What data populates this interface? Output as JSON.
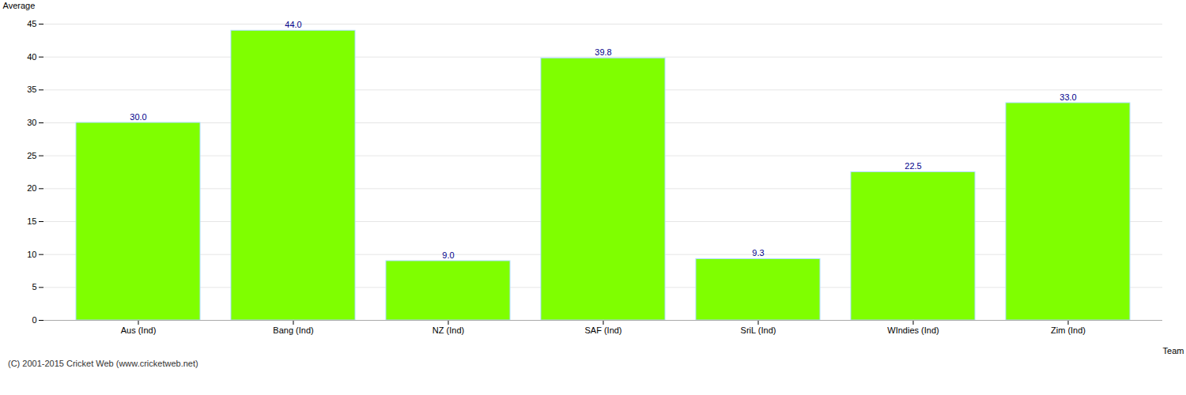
{
  "chart_data": {
    "type": "bar",
    "categories": [
      "Aus (Ind)",
      "Bang (Ind)",
      "NZ (Ind)",
      "SAF (Ind)",
      "SriL (Ind)",
      "WIndies (Ind)",
      "Zim (Ind)"
    ],
    "values": [
      30.0,
      44.0,
      9.0,
      39.8,
      9.3,
      22.5,
      33.0
    ],
    "value_labels": [
      "30.0",
      "44.0",
      "9.0",
      "39.8",
      "9.3",
      "22.5",
      "33.0"
    ],
    "data_labels": true,
    "color": "#7FFF00",
    "xlabel": "Team",
    "ylabel": "Average",
    "ylim": [
      0,
      45
    ],
    "yticks": [
      0,
      5,
      10,
      15,
      20,
      25,
      30,
      35,
      40,
      45
    ],
    "grid": true,
    "annotations": [
      "(C) 2001-2015 Cricket Web (www.cricketweb.net)"
    ]
  }
}
